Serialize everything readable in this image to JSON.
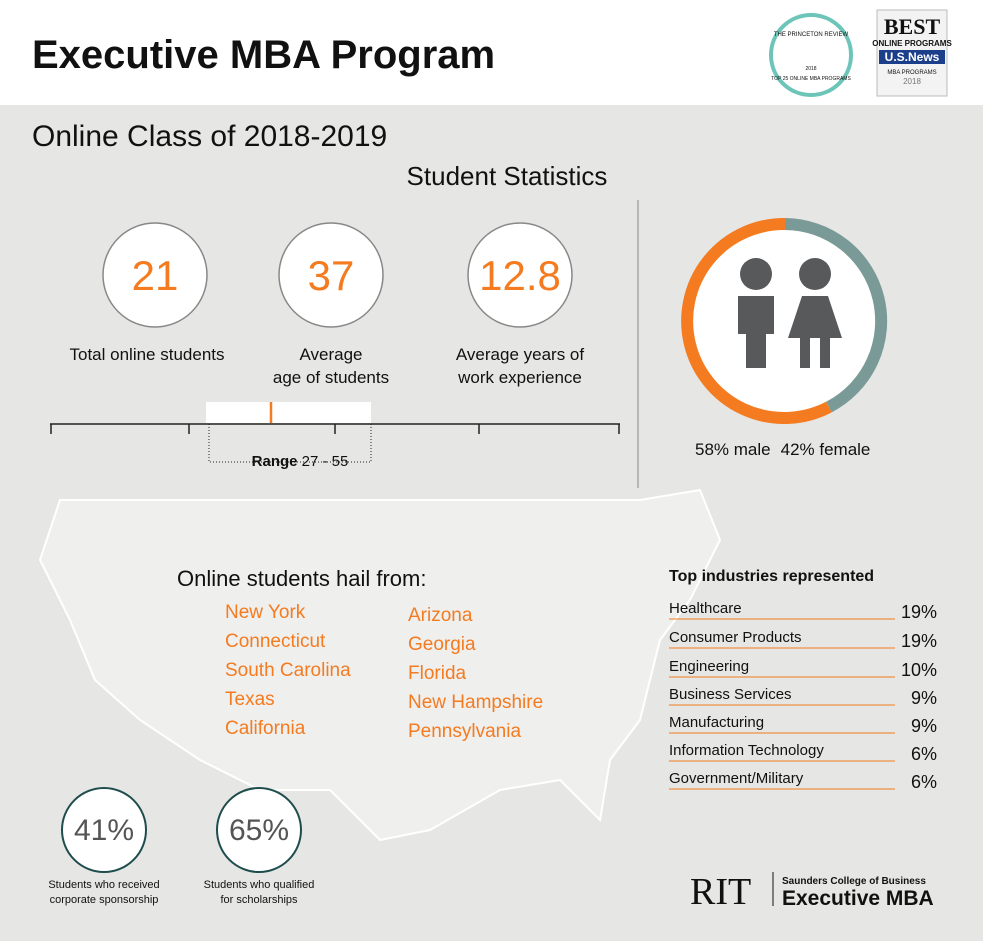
{
  "header": {
    "title": "Executive MBA Program",
    "badges": {
      "princeton": [
        "THE PRINCETON REVIEW",
        "TOP 25 ONLINE MBA PROGRAMS",
        "2018"
      ],
      "usnews": [
        "BEST",
        "ONLINE PROGRAMS",
        "U.S.News",
        "MBA PROGRAMS",
        "2018"
      ]
    }
  },
  "subtitle": "Online Class of 2018-2019",
  "stats": {
    "heading": "Student Statistics",
    "items": [
      {
        "value": "21",
        "label": [
          "Total online students"
        ]
      },
      {
        "value": "37",
        "label": [
          "Average",
          "age of students"
        ]
      },
      {
        "value": "12.8",
        "label": [
          "Average years of",
          "work experience"
        ]
      }
    ],
    "range": {
      "label": "Range",
      "value": "27 - 55"
    }
  },
  "gender": {
    "male": "58% male",
    "female": "42% female"
  },
  "origins": {
    "heading": "Online students hail from:",
    "states": [
      [
        "New York",
        "Connecticut",
        "South Carolina",
        "Texas",
        "California"
      ],
      [
        "Arizona",
        "Georgia",
        "Florida",
        "New Hampshire",
        "Pennsylvania"
      ]
    ]
  },
  "industries": {
    "heading": "Top industries represented",
    "rows": [
      {
        "name": "Healthcare",
        "percent": "19%"
      },
      {
        "name": "Consumer Products",
        "percent": "19%"
      },
      {
        "name": "Engineering",
        "percent": "10%"
      },
      {
        "name": "Business Services",
        "percent": "9%"
      },
      {
        "name": "Manufacturing",
        "percent": "9%"
      },
      {
        "name": "Information Technology",
        "percent": "6%"
      },
      {
        "name": "Government/Military",
        "percent": "6%"
      }
    ]
  },
  "highlights": [
    {
      "value": "41%",
      "caption": [
        "Students who received",
        "corporate sponsorship"
      ]
    },
    {
      "value": "65%",
      "caption": [
        "Students who qualified",
        "for scholarships"
      ]
    }
  ],
  "footer": {
    "logo": "RIT",
    "school": "Saunders College of Business",
    "program": "Executive MBA"
  }
}
